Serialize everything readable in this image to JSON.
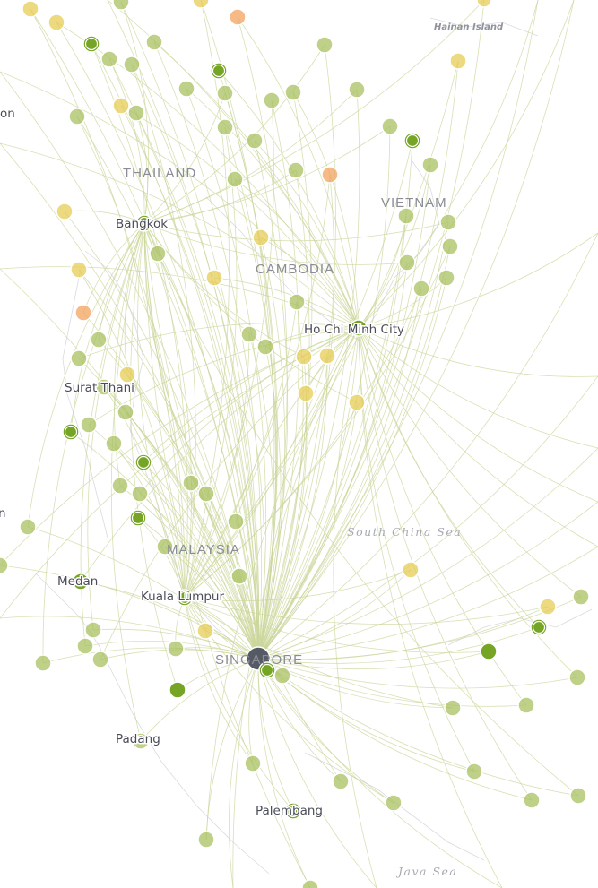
{
  "map": {
    "countries": [
      "THAILAND",
      "CAMBODIA",
      "VIETNAM",
      "MALAYSIA",
      "SINGAPORE"
    ],
    "cities": [
      "Bangkok",
      "Ho Chi Minh City",
      "Surat Thani",
      "Kuala Lumpur",
      "Medan",
      "Padang",
      "Palembang"
    ],
    "seas": [
      "South China Sea",
      "Java Sea"
    ],
    "islands": [
      "Hainan Island"
    ],
    "edge_labels": [
      "on",
      "n"
    ],
    "colors": {
      "hub": "#4e5260",
      "strong": "#6fa01a",
      "medium": "#a9c060",
      "weak": "#e6cc55",
      "low": "#f3a35f",
      "route": "#c9d59a"
    }
  }
}
